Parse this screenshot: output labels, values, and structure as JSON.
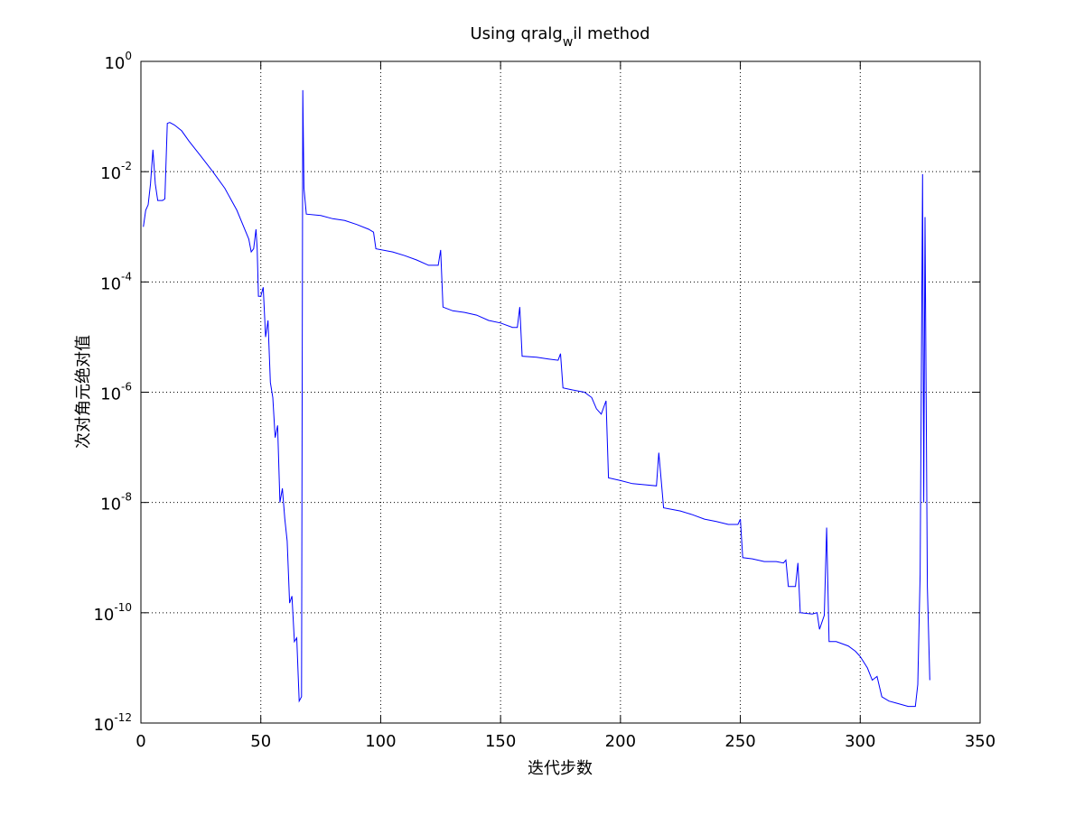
{
  "chart_data": {
    "type": "line",
    "title": "Using qralg",
    "title_subscript": "w",
    "title_suffix": "il method",
    "xlabel": "迭代步数",
    "ylabel": "次对角元绝对值",
    "xlim": [
      0,
      350
    ],
    "ylim": [
      1e-12,
      1
    ],
    "yscale": "log",
    "grid": true,
    "x_ticks": [
      0,
      50,
      100,
      150,
      200,
      250,
      300,
      350
    ],
    "x_tick_labels": [
      "0",
      "50",
      "100",
      "150",
      "200",
      "250",
      "300",
      "350"
    ],
    "y_tick_exponents": [
      0,
      -2,
      -4,
      -6,
      -8,
      -10,
      -12
    ],
    "y_tick_base": "10",
    "y_tick_exponent_labels": [
      "0",
      "-2",
      "-4",
      "-6",
      "-8",
      "-10",
      "-12"
    ],
    "series": [
      {
        "color": "#0000ff",
        "points": [
          [
            1,
            0.001
          ],
          [
            2,
            0.002
          ],
          [
            3,
            0.0025
          ],
          [
            4,
            0.006
          ],
          [
            5,
            0.025
          ],
          [
            6,
            0.006
          ],
          [
            7,
            0.003
          ],
          [
            8,
            0.003
          ],
          [
            9,
            0.003
          ],
          [
            10,
            0.0032
          ],
          [
            11,
            0.075
          ],
          [
            12,
            0.078
          ],
          [
            14,
            0.07
          ],
          [
            17,
            0.055
          ],
          [
            20,
            0.036
          ],
          [
            25,
            0.019
          ],
          [
            30,
            0.01
          ],
          [
            35,
            0.005
          ],
          [
            40,
            0.002
          ],
          [
            45,
            0.0006
          ],
          [
            46,
            0.00035
          ],
          [
            47,
            0.0004
          ],
          [
            48,
            0.0009
          ],
          [
            48.5,
            0.0004
          ],
          [
            49,
            5.5e-05
          ],
          [
            50,
            5.5e-05
          ],
          [
            51,
            8e-05
          ],
          [
            52,
            1e-05
          ],
          [
            53,
            2e-05
          ],
          [
            54,
            1.5e-06
          ],
          [
            55,
            8e-07
          ],
          [
            56,
            1.5e-07
          ],
          [
            57,
            2.5e-07
          ],
          [
            58,
            1e-08
          ],
          [
            59,
            1.8e-08
          ],
          [
            60,
            5e-09
          ],
          [
            61,
            2e-09
          ],
          [
            62,
            1.5e-10
          ],
          [
            63,
            2e-10
          ],
          [
            64,
            3e-11
          ],
          [
            65,
            3.5e-11
          ],
          [
            66,
            2.5e-12
          ],
          [
            67,
            3e-12
          ],
          [
            67.5,
            0.3
          ],
          [
            68,
            0.005
          ],
          [
            69,
            0.0017
          ],
          [
            75,
            0.0016
          ],
          [
            80,
            0.0014
          ],
          [
            85,
            0.0013
          ],
          [
            90,
            0.0011
          ],
          [
            95,
            0.0009
          ],
          [
            97,
            0.0008
          ],
          [
            98,
            0.0004
          ],
          [
            105,
            0.00035
          ],
          [
            110,
            0.0003
          ],
          [
            115,
            0.00025
          ],
          [
            120,
            0.0002
          ],
          [
            124,
            0.0002
          ],
          [
            125,
            0.00038
          ],
          [
            126,
            3.5e-05
          ],
          [
            130,
            3e-05
          ],
          [
            135,
            2.8e-05
          ],
          [
            140,
            2.5e-05
          ],
          [
            145,
            2e-05
          ],
          [
            150,
            1.8e-05
          ],
          [
            155,
            1.5e-05
          ],
          [
            157,
            1.5e-05
          ],
          [
            158,
            3.5e-05
          ],
          [
            159,
            4.5e-06
          ],
          [
            165,
            4.3e-06
          ],
          [
            170,
            4e-06
          ],
          [
            174,
            3.8e-06
          ],
          [
            175,
            5e-06
          ],
          [
            176,
            1.2e-06
          ],
          [
            180,
            1.1e-06
          ],
          [
            185,
            1e-06
          ],
          [
            188,
            8e-07
          ],
          [
            190,
            5e-07
          ],
          [
            192,
            4e-07
          ],
          [
            194,
            7e-07
          ],
          [
            195,
            2.8e-08
          ],
          [
            200,
            2.5e-08
          ],
          [
            205,
            2.2e-08
          ],
          [
            210,
            2.1e-08
          ],
          [
            215,
            2e-08
          ],
          [
            216,
            8e-08
          ],
          [
            217,
            2.5e-08
          ],
          [
            218,
            8e-09
          ],
          [
            225,
            7e-09
          ],
          [
            230,
            6e-09
          ],
          [
            235,
            5e-09
          ],
          [
            240,
            4.5e-09
          ],
          [
            245,
            4e-09
          ],
          [
            249,
            4e-09
          ],
          [
            250,
            5e-09
          ],
          [
            251,
            1e-09
          ],
          [
            255,
            9.5e-10
          ],
          [
            260,
            8.5e-10
          ],
          [
            265,
            8.5e-10
          ],
          [
            268,
            8e-10
          ],
          [
            269,
            9e-10
          ],
          [
            270,
            3e-10
          ],
          [
            273,
            3e-10
          ],
          [
            274,
            8e-10
          ],
          [
            275,
            1e-10
          ],
          [
            280,
            9.5e-11
          ],
          [
            282,
            1e-10
          ],
          [
            283,
            5e-11
          ],
          [
            285,
            9e-11
          ],
          [
            286,
            3.5e-09
          ],
          [
            287,
            3e-11
          ],
          [
            290,
            3e-11
          ],
          [
            295,
            2.5e-11
          ],
          [
            298,
            2e-11
          ],
          [
            300,
            1.6e-11
          ],
          [
            303,
            1e-11
          ],
          [
            305,
            6e-12
          ],
          [
            307,
            7e-12
          ],
          [
            309,
            3e-12
          ],
          [
            312,
            2.5e-12
          ],
          [
            315,
            2.3e-12
          ],
          [
            320,
            2e-12
          ],
          [
            323,
            2e-12
          ],
          [
            324,
            5e-12
          ],
          [
            325,
            5e-10
          ],
          [
            326,
            0.009
          ],
          [
            326.5,
            1e-08
          ],
          [
            327,
            0.0015
          ],
          [
            328,
            3e-10
          ],
          [
            329,
            6e-12
          ]
        ]
      }
    ]
  }
}
